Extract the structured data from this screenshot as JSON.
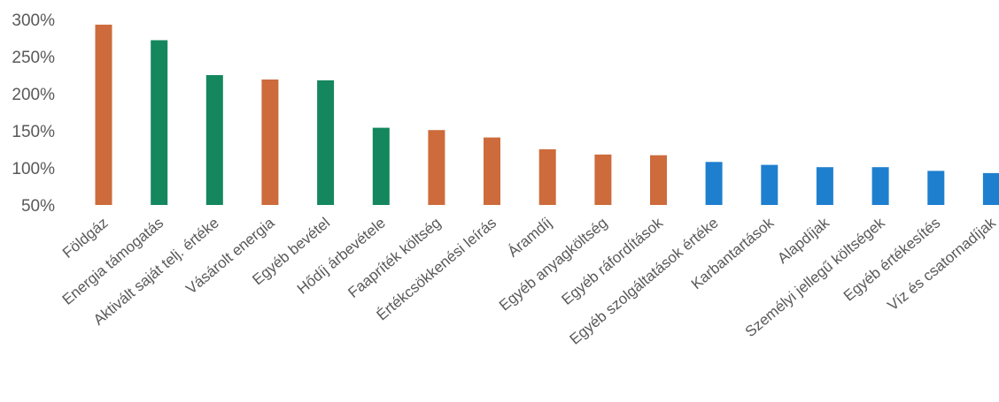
{
  "chart_data": {
    "type": "bar",
    "title": "",
    "xlabel": "",
    "ylabel": "",
    "ylim": [
      0.5,
      3.0
    ],
    "yticks": [
      {
        "value": 3.0,
        "label": "300%"
      },
      {
        "value": 2.5,
        "label": "250%"
      },
      {
        "value": 2.0,
        "label": "200%"
      },
      {
        "value": 1.5,
        "label": "150%"
      },
      {
        "value": 1.0,
        "label": "100%"
      },
      {
        "value": 0.5,
        "label": "50%"
      }
    ],
    "grid": false,
    "legend": "none",
    "categories": [
      "Földgáz",
      "Energia támogatás",
      "Aktivált saját telj. értéke",
      "Vásárolt energia",
      "Egyéb bevétel",
      "Hődíj árbevétele",
      "Faapríték költség",
      "Értékcsökkenési leírás",
      "Áramdíj",
      "Egyéb anyagköltség",
      "Egyéb ráfordítások",
      "Egyéb szolgáltatások értéke",
      "Karbantartások",
      "Alapdíjak",
      "Személyi jellegű költségek",
      "Egyéb értékesítés",
      "Víz és csatornadíjak"
    ],
    "values": [
      2.93,
      2.72,
      2.25,
      2.19,
      2.18,
      1.54,
      1.51,
      1.41,
      1.25,
      1.18,
      1.17,
      1.08,
      1.04,
      1.01,
      1.01,
      0.96,
      0.93
    ],
    "bar_colors": [
      "#cd6b3c",
      "#14875f",
      "#14875f",
      "#cd6b3c",
      "#14875f",
      "#14875f",
      "#cd6b3c",
      "#cd6b3c",
      "#cd6b3c",
      "#cd6b3c",
      "#cd6b3c",
      "#1f7fcf",
      "#1f7fcf",
      "#1f7fcf",
      "#1f7fcf",
      "#1f7fcf",
      "#1f7fcf"
    ]
  }
}
